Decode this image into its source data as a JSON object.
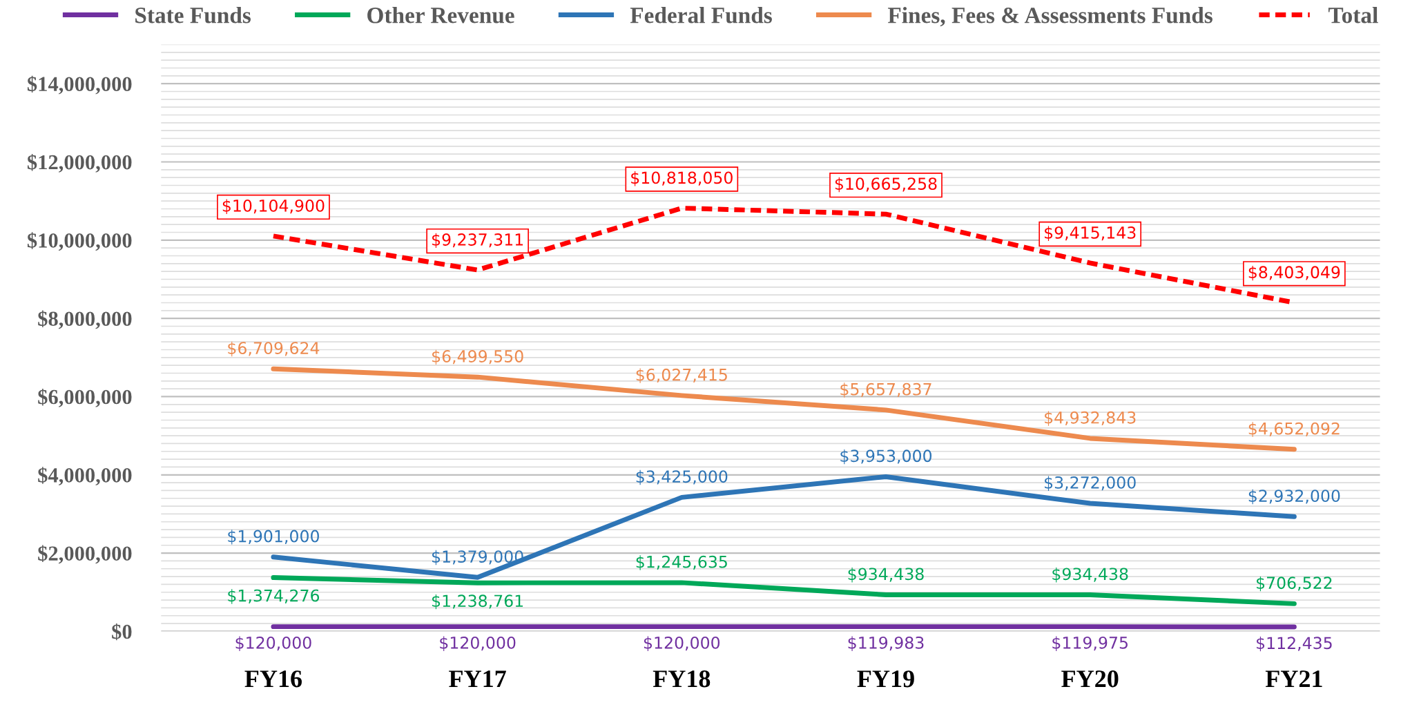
{
  "chart_data": {
    "type": "line",
    "categories": [
      "FY16",
      "FY17",
      "FY18",
      "FY19",
      "FY20",
      "FY21"
    ],
    "series": [
      {
        "name": "State Funds",
        "color": "#7030a0",
        "values": [
          120000,
          120000,
          120000,
          119983,
          119975,
          112435
        ],
        "value_labels": [
          "$120,000",
          "$120,000",
          "$120,000",
          "$119,983",
          "$119,975",
          "$112,435"
        ]
      },
      {
        "name": "Other Revenue",
        "color": "#00a859",
        "values": [
          1374276,
          1238761,
          1245635,
          934438,
          934438,
          706522
        ],
        "value_labels": [
          "$1,374,276",
          "$1,238,761",
          "$1,245,635",
          "$934,438",
          "$934,438",
          "$706,522"
        ]
      },
      {
        "name": "Federal Funds",
        "color": "#2e75b6",
        "values": [
          1901000,
          1379000,
          3425000,
          3953000,
          3272000,
          2932000
        ],
        "value_labels": [
          "$1,901,000",
          "$1,379,000",
          "$3,425,000",
          "$3,953,000",
          "$3,272,000",
          "$2,932,000"
        ]
      },
      {
        "name": "Fines, Fees & Assessments Funds",
        "color": "#ed8a4e",
        "values": [
          6709624,
          6499550,
          6027415,
          5657837,
          4932843,
          4652092
        ],
        "value_labels": [
          "$6,709,624",
          "$6,499,550",
          "$6,027,415",
          "$5,657,837",
          "$4,932,843",
          "$4,652,092"
        ]
      },
      {
        "name": "Total",
        "color": "#ff0000",
        "line_style": "dashed",
        "values": [
          10104900,
          9237311,
          10818050,
          10665258,
          9415143,
          8403049
        ],
        "value_labels": [
          "$10,104,900",
          "$9,237,311",
          "$10,818,050",
          "$10,665,258",
          "$9,415,143",
          "$8,403,049"
        ]
      }
    ],
    "ylim": [
      0,
      15000000
    ],
    "yticks": [
      {
        "value": 0,
        "label": "$0"
      },
      {
        "value": 200000,
        "label": null
      },
      {
        "value": 400000,
        "label": null
      },
      {
        "value": 600000,
        "label": null
      },
      {
        "value": 800000,
        "label": null
      },
      {
        "value": 1000000,
        "label": null
      },
      {
        "value": 1200000,
        "label": null
      },
      {
        "value": 1400000,
        "label": null
      },
      {
        "value": 1600000,
        "label": null
      },
      {
        "value": 1800000,
        "label": null
      },
      {
        "value": 2000000,
        "label": "$2,000,000"
      },
      {
        "value": 2200000,
        "label": null
      },
      {
        "value": 2400000,
        "label": null
      },
      {
        "value": 2600000,
        "label": null
      },
      {
        "value": 2800000,
        "label": null
      },
      {
        "value": 3000000,
        "label": null
      },
      {
        "value": 3200000,
        "label": null
      },
      {
        "value": 3400000,
        "label": null
      },
      {
        "value": 3600000,
        "label": null
      },
      {
        "value": 3800000,
        "label": null
      },
      {
        "value": 4000000,
        "label": "$4,000,000"
      },
      {
        "value": 4200000,
        "label": null
      },
      {
        "value": 4400000,
        "label": null
      },
      {
        "value": 4600000,
        "label": null
      },
      {
        "value": 4800000,
        "label": null
      },
      {
        "value": 5000000,
        "label": null
      },
      {
        "value": 5200000,
        "label": null
      },
      {
        "value": 5400000,
        "label": null
      },
      {
        "value": 5600000,
        "label": null
      },
      {
        "value": 5800000,
        "label": null
      },
      {
        "value": 6000000,
        "label": "$6,000,000"
      },
      {
        "value": 6200000,
        "label": null
      },
      {
        "value": 6400000,
        "label": null
      },
      {
        "value": 6600000,
        "label": null
      },
      {
        "value": 6800000,
        "label": null
      },
      {
        "value": 7000000,
        "label": null
      },
      {
        "value": 7200000,
        "label": null
      },
      {
        "value": 7400000,
        "label": null
      },
      {
        "value": 7600000,
        "label": null
      },
      {
        "value": 7800000,
        "label": null
      },
      {
        "value": 8000000,
        "label": "$8,000,000"
      },
      {
        "value": 8200000,
        "label": null
      },
      {
        "value": 8400000,
        "label": null
      },
      {
        "value": 8600000,
        "label": null
      },
      {
        "value": 8800000,
        "label": null
      },
      {
        "value": 9000000,
        "label": null
      },
      {
        "value": 9200000,
        "label": null
      },
      {
        "value": 9400000,
        "label": null
      },
      {
        "value": 9600000,
        "label": null
      },
      {
        "value": 9800000,
        "label": null
      },
      {
        "value": 10000000,
        "label": "$10,000,000"
      },
      {
        "value": 10200000,
        "label": null
      },
      {
        "value": 10400000,
        "label": null
      },
      {
        "value": 10600000,
        "label": null
      },
      {
        "value": 10800000,
        "label": null
      },
      {
        "value": 11000000,
        "label": null
      },
      {
        "value": 11200000,
        "label": null
      },
      {
        "value": 11400000,
        "label": null
      },
      {
        "value": 11600000,
        "label": null
      },
      {
        "value": 11800000,
        "label": null
      },
      {
        "value": 12000000,
        "label": "$12,000,000"
      },
      {
        "value": 12200000,
        "label": null
      },
      {
        "value": 12400000,
        "label": null
      },
      {
        "value": 12600000,
        "label": null
      },
      {
        "value": 12800000,
        "label": null
      },
      {
        "value": 13000000,
        "label": null
      },
      {
        "value": 13200000,
        "label": null
      },
      {
        "value": 13400000,
        "label": null
      },
      {
        "value": 13600000,
        "label": null
      },
      {
        "value": 13800000,
        "label": null
      },
      {
        "value": 14000000,
        "label": "$14,000,000"
      },
      {
        "value": 14200000,
        "label": null
      },
      {
        "value": 14400000,
        "label": null
      },
      {
        "value": 14600000,
        "label": null
      },
      {
        "value": 14800000,
        "label": null
      },
      {
        "value": 15000000,
        "label": null
      }
    ],
    "grid": "y",
    "legend": "top",
    "marker": "none",
    "line_style": "solid"
  }
}
